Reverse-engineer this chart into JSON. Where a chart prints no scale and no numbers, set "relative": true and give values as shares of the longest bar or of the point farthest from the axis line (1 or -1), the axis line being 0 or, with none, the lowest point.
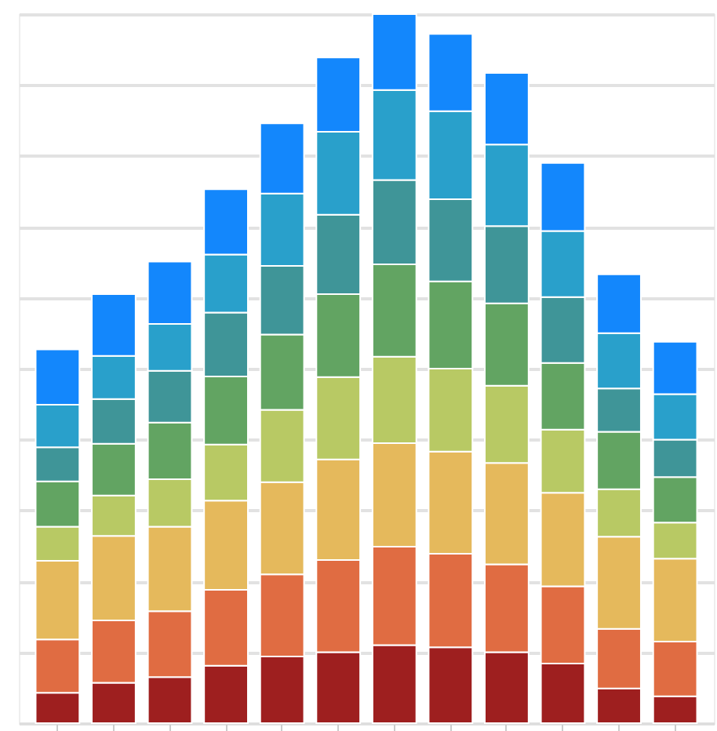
{
  "chart_data": {
    "type": "bar",
    "stacked": true,
    "relative": true,
    "grid": "y",
    "categories": [
      null,
      null,
      null,
      null,
      null,
      null,
      null,
      null,
      null,
      null,
      null,
      null
    ],
    "series": [
      {
        "color": "#9e1f1f",
        "values": [
          0.043,
          0.057,
          0.065,
          0.081,
          0.094,
          0.1,
          0.11,
          0.107,
          0.1,
          0.084,
          0.049,
          0.038
        ]
      },
      {
        "color": "#e06c42",
        "values": [
          0.075,
          0.088,
          0.093,
          0.107,
          0.116,
          0.13,
          0.139,
          0.132,
          0.124,
          0.109,
          0.084,
          0.077
        ]
      },
      {
        "color": "#e5b95c",
        "values": [
          0.111,
          0.119,
          0.119,
          0.126,
          0.13,
          0.142,
          0.146,
          0.144,
          0.143,
          0.132,
          0.13,
          0.117
        ]
      },
      {
        "color": "#b8c964",
        "values": [
          0.048,
          0.057,
          0.067,
          0.079,
          0.102,
          0.116,
          0.122,
          0.117,
          0.109,
          0.089,
          0.067,
          0.051
        ]
      },
      {
        "color": "#62a462",
        "values": [
          0.064,
          0.073,
          0.08,
          0.096,
          0.106,
          0.117,
          0.13,
          0.123,
          0.116,
          0.094,
          0.081,
          0.064
        ]
      },
      {
        "color": "#3f9598",
        "values": [
          0.048,
          0.063,
          0.073,
          0.09,
          0.097,
          0.112,
          0.119,
          0.116,
          0.109,
          0.093,
          0.061,
          0.053
        ]
      },
      {
        "color": "#29a0cb",
        "values": [
          0.06,
          0.061,
          0.066,
          0.082,
          0.102,
          0.117,
          0.127,
          0.124,
          0.115,
          0.093,
          0.078,
          0.064
        ]
      },
      {
        "color": "#1387fc",
        "values": [
          0.078,
          0.087,
          0.088,
          0.092,
          0.099,
          0.105,
          0.107,
          0.109,
          0.101,
          0.096,
          0.083,
          0.074
        ]
      }
    ]
  }
}
